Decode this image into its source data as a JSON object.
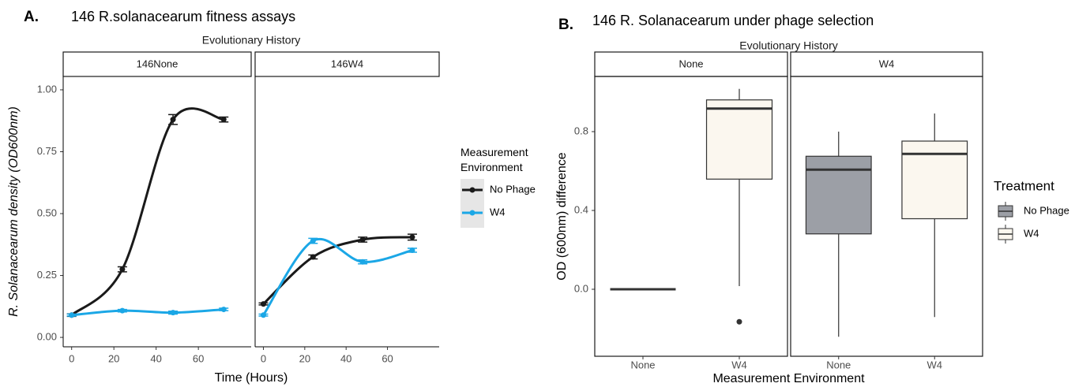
{
  "chart_data": [
    {
      "type": "line",
      "panel_label": "A.",
      "title": "146 R.solanacearum fitness assays",
      "strip_title": "Evolutionary History",
      "x_label": "Time (Hours)",
      "y_label": "R. Solanacearum density (OD600nm)",
      "x": [
        0,
        24,
        48,
        72
      ],
      "xlim": [
        -4,
        85
      ],
      "xticks": [
        0,
        20,
        40,
        60
      ],
      "ylim": [
        -0.038,
        1.054
      ],
      "yticks": [
        {
          "value": 0,
          "label": "0.00"
        },
        {
          "value": 0.25,
          "label": "0.25"
        },
        {
          "value": 0.5,
          "label": "0.50"
        },
        {
          "value": 0.75,
          "label": "0.75"
        },
        {
          "value": 1,
          "label": "1.00"
        }
      ],
      "legend_title": "Measurement Environment",
      "series": [
        {
          "name": "No Phage",
          "color": "#1a1a1a"
        },
        {
          "name": "W4",
          "color": "#1ba7e6"
        }
      ],
      "facets": [
        {
          "label": "146None",
          "values": [
            [
              0.09,
              0.275,
              0.88,
              0.88
            ],
            [
              0.09,
              0.108,
              0.1,
              0.113
            ]
          ],
          "errors": [
            [
              0.005,
              0.01,
              0.02,
              0.01
            ],
            [
              0.004,
              0.005,
              0.006,
              0.005
            ]
          ]
        },
        {
          "label": "146W4",
          "values": [
            [
              0.135,
              0.325,
              0.395,
              0.405
            ],
            [
              0.09,
              0.39,
              0.305,
              0.352
            ]
          ],
          "errors": [
            [
              0.004,
              0.008,
              0.01,
              0.012
            ],
            [
              0.004,
              0.01,
              0.008,
              0.008
            ]
          ]
        }
      ]
    },
    {
      "type": "box",
      "panel_label": "B.",
      "title": "146 R. Solanacearum under phage selection",
      "strip_title": "Evolutionary History",
      "x_label": "Measurement Environment",
      "y_label": "OD (600nm) difference",
      "categories": [
        "None",
        "W4"
      ],
      "ylim": [
        -0.34,
        1.08
      ],
      "yticks": [
        {
          "value": 0,
          "label": "0.0"
        },
        {
          "value": 0.4,
          "label": "0.4"
        },
        {
          "value": 0.8,
          "label": "0.8"
        }
      ],
      "legend_title": "Treatment",
      "series": [
        {
          "name": "No Phage",
          "color": "#9c9fa6"
        },
        {
          "name": "W4",
          "color": "#fbf7ef"
        }
      ],
      "facets": [
        {
          "label": "None",
          "boxes": [
            {
              "min": 0,
              "q1": 0,
              "median": 0,
              "q3": 0,
              "max": 0,
              "outliers": []
            },
            {
              "min": 0.016,
              "q1": 0.559,
              "median": 0.917,
              "q3": 0.961,
              "max": 1.017,
              "outliers": [
                -0.165
              ]
            }
          ]
        },
        {
          "label": "W4",
          "boxes": [
            {
              "min": -0.241,
              "q1": 0.281,
              "median": 0.607,
              "q3": 0.675,
              "max": 0.8,
              "outliers": []
            },
            {
              "min": -0.141,
              "q1": 0.358,
              "median": 0.687,
              "q3": 0.752,
              "max": 0.892,
              "outliers": []
            }
          ]
        }
      ]
    }
  ]
}
